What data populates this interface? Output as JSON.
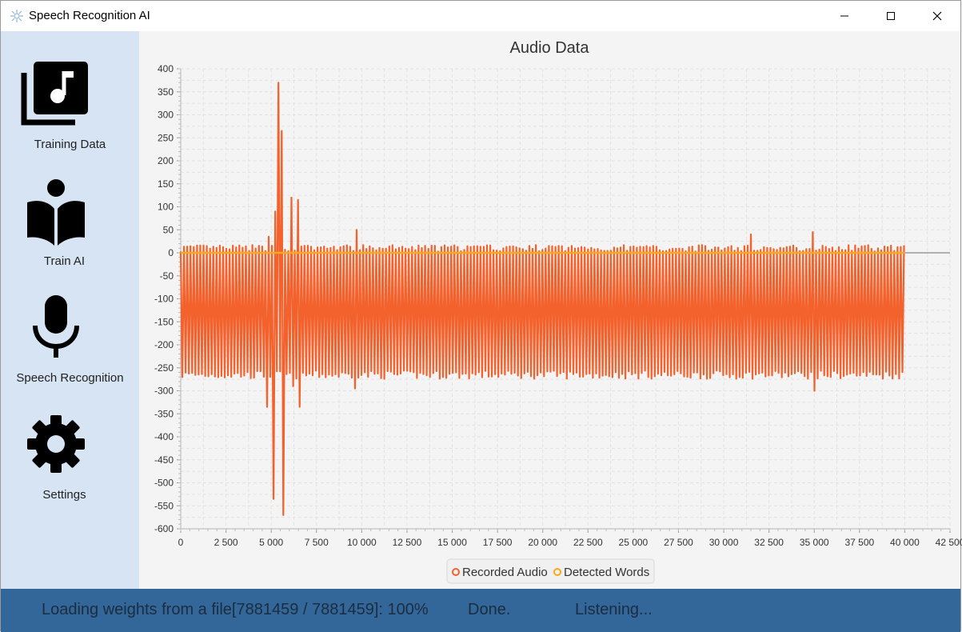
{
  "window": {
    "title": "Speech Recognition AI",
    "controls": [
      "minimize",
      "maximize",
      "close"
    ]
  },
  "sidebar": {
    "items": [
      {
        "label": "Training Data",
        "icon": "music-library-icon"
      },
      {
        "label": "Train AI",
        "icon": "reader-book-icon"
      },
      {
        "label": "Speech Recognition",
        "icon": "microphone-icon"
      },
      {
        "label": "Settings",
        "icon": "gear-icon"
      }
    ]
  },
  "chart_data": {
    "type": "line",
    "title": "Audio Data",
    "xlabel": "",
    "ylabel": "",
    "xlim": [
      0,
      42500
    ],
    "ylim": [
      -600,
      400
    ],
    "x_ticks": [
      "0",
      "2 500",
      "5 000",
      "7 500",
      "10 000",
      "12 500",
      "15 000",
      "17 500",
      "20 000",
      "22 500",
      "25 000",
      "27 500",
      "30 000",
      "32 500",
      "35 000",
      "37 500",
      "40 000",
      "42 500"
    ],
    "y_ticks": [
      "400",
      "350",
      "300",
      "250",
      "200",
      "150",
      "100",
      "50",
      "0",
      "-50",
      "-100",
      "-150",
      "-200",
      "-250",
      "-300",
      "-350",
      "-400",
      "-450",
      "-500",
      "-550",
      "-600"
    ],
    "grid": true,
    "legend_position": "bottom",
    "series": [
      {
        "name": "Recorded Audio",
        "color": "#f3622d",
        "x_range": [
          0,
          40000
        ],
        "typical_high": 10,
        "typical_low": -265,
        "peaks": [
          {
            "x": 5150,
            "high": 90,
            "low": -535
          },
          {
            "x": 5400,
            "high": 370,
            "low": -575
          },
          {
            "x": 5650,
            "high": 265,
            "low": -570
          },
          {
            "x": 6200,
            "high": 120,
            "low": -290
          },
          {
            "x": 6500,
            "high": 115,
            "low": -335
          },
          {
            "x": 4800,
            "high": 35,
            "low": -335
          },
          {
            "x": 9700,
            "high": 50,
            "low": -295
          },
          {
            "x": 31500,
            "high": 40,
            "low": -290
          },
          {
            "x": 35000,
            "high": 45,
            "low": -300
          }
        ]
      },
      {
        "name": "Detected Words",
        "color": "#fba71b",
        "x_range": [
          0,
          40000
        ],
        "value": 0
      }
    ],
    "tail_line": {
      "x_range": [
        40000,
        42500
      ],
      "value": 0,
      "color": "#999999"
    }
  },
  "status": {
    "loading": "Loading weights from a file[7881459 / 7881459]: 100%",
    "done": "Done.",
    "listening": "Listening..."
  },
  "colors": {
    "sidebar_bg": "#d6e4f3",
    "status_bg": "#336699",
    "audio": "#f3622d",
    "words": "#fba71b"
  }
}
